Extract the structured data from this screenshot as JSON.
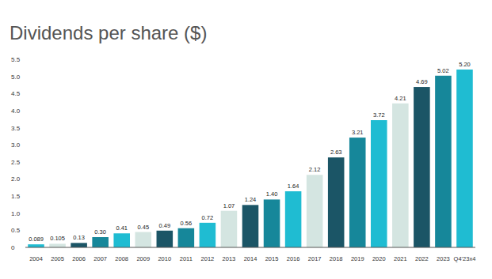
{
  "chart_data": {
    "type": "bar",
    "title": "Dividends per share ($)",
    "categories": [
      "2004",
      "2005",
      "2006",
      "2007",
      "2008",
      "2009",
      "2010",
      "2011",
      "2012",
      "2013",
      "2014",
      "2015",
      "2016",
      "2017",
      "2018",
      "2019",
      "2020",
      "2021",
      "2022",
      "2023",
      "Q4'23x4"
    ],
    "values": [
      0.089,
      0.105,
      0.13,
      0.3,
      0.41,
      0.45,
      0.49,
      0.56,
      0.72,
      1.07,
      1.24,
      1.4,
      1.64,
      2.12,
      2.63,
      3.21,
      3.72,
      4.21,
      4.69,
      5.02,
      5.2
    ],
    "value_labels": [
      "0.089",
      "0.105",
      "0.13",
      "0.30",
      "0.41",
      "0.45",
      "0.49",
      "0.56",
      "0.72",
      "1.07",
      "1.24",
      "1.40",
      "1.64",
      "2.12",
      "2.63",
      "3.21",
      "3.72",
      "4.21",
      "4.69",
      "5.02",
      "5.20"
    ],
    "colors": [
      "#1fbcd2",
      "#d4e5e1",
      "#1b5566",
      "#16879a",
      "#1fbcd2",
      "#d4e5e1",
      "#1b5566",
      "#16879a",
      "#1fbcd2",
      "#d4e5e1",
      "#1b5566",
      "#16879a",
      "#1fbcd2",
      "#d4e5e1",
      "#1b5566",
      "#16879a",
      "#1fbcd2",
      "#d4e5e1",
      "#1b5566",
      "#16879a",
      "#1fbcd2"
    ],
    "ylim": [
      0,
      5.5
    ],
    "yticks": [
      0,
      0.5,
      {
        "value": 1,
        "label": "1.0"
      },
      1.5,
      {
        "value": 2,
        "label": "2.0"
      },
      2.5,
      {
        "value": 3,
        "label": "3.0"
      },
      3.5,
      {
        "value": 4,
        "label": "4.0"
      },
      4.5,
      {
        "value": 5,
        "label": "5.0"
      },
      5.5
    ],
    "grid": false,
    "data_labels": true
  }
}
